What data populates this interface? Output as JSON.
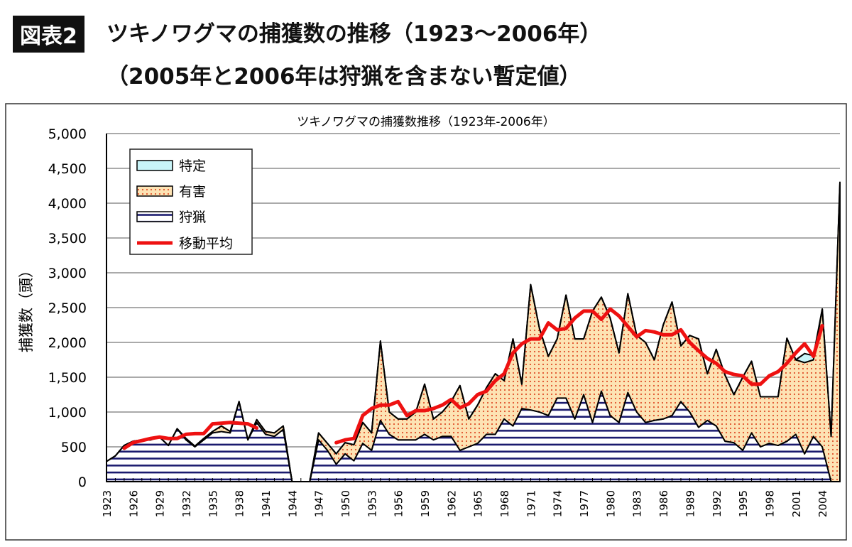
{
  "header": {
    "badge": "図表2",
    "title_line1": "ツキノワグマの捕獲数の推移（1923〜2006年）",
    "title_line2": "（2005年と2006年は狩猟を含まない暫定値）"
  },
  "chart_data": {
    "type": "area",
    "stacked": true,
    "title": "ツキノワグマの捕獲数推移（1923年-2006年）",
    "xlabel": "",
    "ylabel": "捕獲数（頭）",
    "ylim": [
      0,
      5000
    ],
    "yticks": [
      "0",
      "500",
      "1,000",
      "1,500",
      "2,000",
      "2,500",
      "3,000",
      "3,500",
      "4,000",
      "4,500",
      "5,000"
    ],
    "xlim": [
      1923,
      2006
    ],
    "xticks": [
      "1923",
      "1926",
      "1929",
      "1932",
      "1935",
      "1938",
      "1941",
      "1944",
      "1947",
      "1950",
      "1953",
      "1956",
      "1959",
      "1962",
      "1965",
      "1968",
      "1971",
      "1974",
      "1977",
      "1980",
      "1983",
      "1986",
      "1989",
      "1992",
      "1995",
      "1998",
      "2001",
      "2004"
    ],
    "grid": true,
    "legend_placement": "top-left",
    "colors": {
      "hunting_fill": "#ffffff",
      "hunting_lines": "#1a1a6e",
      "harmful_fill": "#fde3b4",
      "harmful_dots": "#e0502a",
      "special_fill": "#c8f4f8",
      "moving_average": "#ee1111"
    },
    "x_start": 1923,
    "series": [
      {
        "name": "狩猟",
        "values": [
          290,
          370,
          520,
          580,
          600,
          600,
          640,
          520,
          760,
          600,
          500,
          600,
          700,
          720,
          700,
          1150,
          600,
          850,
          680,
          650,
          750,
          0,
          0,
          0,
          600,
          450,
          250,
          400,
          300,
          550,
          450,
          880,
          680,
          600,
          600,
          600,
          680,
          600,
          650,
          650,
          450,
          500,
          550,
          680,
          680,
          900,
          800,
          1050,
          1030,
          1000,
          950,
          1200,
          1200,
          900,
          1250,
          850,
          1300,
          950,
          850,
          1280,
          1000,
          850,
          880,
          900,
          950,
          1150,
          1000,
          780,
          880,
          800,
          580,
          560,
          450,
          700,
          500,
          550,
          520,
          580,
          680,
          400,
          650,
          500,
          0,
          0
        ]
      },
      {
        "name": "有害",
        "values": [
          0,
          0,
          0,
          0,
          0,
          0,
          0,
          0,
          0,
          20,
          10,
          20,
          20,
          80,
          20,
          0,
          0,
          40,
          40,
          50,
          50,
          0,
          0,
          0,
          100,
          100,
          150,
          160,
          230,
          300,
          250,
          1140,
          320,
          300,
          300,
          400,
          720,
          300,
          350,
          500,
          930,
          400,
          550,
          670,
          870,
          550,
          1250,
          350,
          1800,
          1200,
          850,
          850,
          1480,
          1150,
          800,
          1600,
          1350,
          1400,
          1000,
          1420,
          1100,
          1150,
          870,
          1350,
          1630,
          800,
          1100,
          1270,
          670,
          1100,
          950,
          690,
          1050,
          1030,
          720,
          670,
          700,
          1480,
          1070,
          1310,
          1100,
          1980,
          650,
          4300
        ]
      },
      {
        "name": "特定",
        "values": [
          0,
          0,
          0,
          0,
          0,
          0,
          0,
          0,
          0,
          0,
          0,
          0,
          0,
          0,
          0,
          0,
          0,
          0,
          0,
          0,
          0,
          0,
          0,
          0,
          0,
          0,
          0,
          0,
          0,
          0,
          0,
          0,
          0,
          0,
          0,
          0,
          0,
          0,
          0,
          0,
          0,
          0,
          0,
          0,
          0,
          0,
          0,
          0,
          0,
          0,
          0,
          0,
          0,
          0,
          0,
          0,
          0,
          0,
          0,
          0,
          0,
          0,
          0,
          0,
          0,
          0,
          0,
          0,
          0,
          0,
          0,
          0,
          0,
          0,
          0,
          0,
          0,
          0,
          0,
          130,
          60,
          0,
          0,
          0
        ]
      },
      {
        "name": "移動平均",
        "segments": [
          {
            "start": 1925,
            "values": [
              480,
              560,
              590,
              620,
              640,
              620,
              620,
              680,
              690,
              690,
              830,
              840,
              850,
              840,
              830,
              770
            ]
          },
          {
            "start": 1949,
            "values": [
              560,
              600,
              620,
              950,
              1050,
              1100,
              1100,
              1150,
              950,
              1020,
              1020,
              1050,
              1100,
              1180,
              1060,
              1120,
              1250,
              1300,
              1450,
              1550,
              1850,
              1980,
              2050,
              2050,
              2280,
              2180,
              2200,
              2350,
              2450,
              2450,
              2330,
              2480,
              2380,
              2230,
              2080,
              2170,
              2150,
              2110,
              2110,
              2180,
              2000,
              1880,
              1770,
              1700,
              1580,
              1540,
              1520,
              1400,
              1400,
              1520,
              1580,
              1700,
              1850,
              1980,
              1800,
              2240
            ]
          }
        ]
      }
    ],
    "legend": [
      "特定",
      "有害",
      "狩猟",
      "移動平均"
    ]
  }
}
